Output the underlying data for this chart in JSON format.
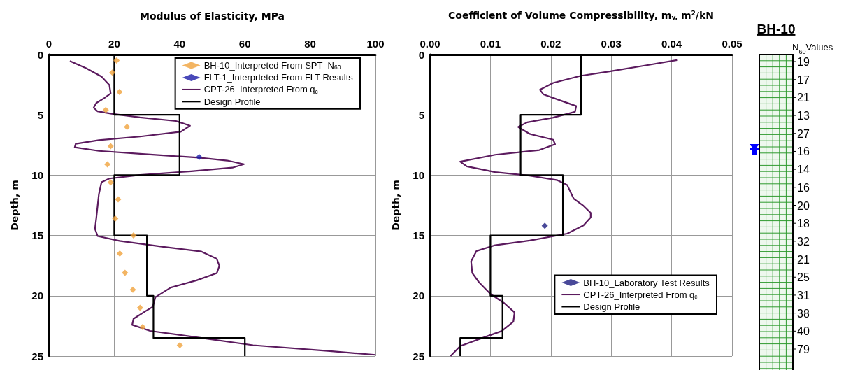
{
  "chart_data": [
    {
      "type": "scatter",
      "xlabel": "Modulus of Elasticity, MPa",
      "ylabel": "Depth, m",
      "xlim": [
        0,
        100
      ],
      "xticks": [
        0,
        20,
        40,
        60,
        80,
        100
      ],
      "ylim": [
        25,
        0
      ],
      "yticks": [
        0,
        5,
        10,
        15,
        20,
        25
      ],
      "grid": true,
      "legend": "top right",
      "series": [
        {
          "name": "BH-10_Interpreted From SPT  N$_{60}$",
          "type": "scatter",
          "marker": "diamond",
          "color": "#f0a23c",
          "x": [
            20.7,
            19.4,
            21.6,
            17.4,
            23.9,
            18.9,
            17.9,
            18.9,
            21.2,
            20.3,
            25.9,
            21.7,
            23.3,
            25.7,
            27.9,
            28.7,
            40.1
          ],
          "values": [
            0.5,
            1.5,
            3.1,
            4.6,
            6.0,
            7.6,
            9.1,
            10.6,
            12.0,
            13.6,
            15.0,
            16.5,
            18.1,
            19.5,
            21.0,
            22.6,
            24.1
          ]
        },
        {
          "name": "FLT-1_Interprteted From FLT Results",
          "type": "scatter",
          "marker": "diamond",
          "color": "#1c1ca8",
          "x": [
            46.0
          ],
          "values": [
            8.5
          ]
        },
        {
          "name": "CPT-26_Interpreted From q$_{c}$",
          "type": "line",
          "color": "#5b1a5e",
          "x": [
            6.4,
            11.4,
            16.1,
            18.5,
            18.9,
            16.9,
            14.5,
            13.7,
            14.9,
            19.2,
            27.9,
            38.9,
            43.2,
            40.4,
            27.9,
            15.3,
            8.2,
            7.9,
            15.3,
            31.0,
            46.0,
            54.6,
            59.7,
            56.2,
            43.6,
            27.9,
            18.5,
            16.1,
            15.3,
            14.9,
            14.5,
            14.1,
            14.9,
            21.6,
            35.0,
            46.7,
            51.4,
            52.2,
            51.4,
            45.2,
            37.3,
            32.6,
            31.8,
            29.4,
            25.9,
            25.5,
            31.0,
            46.7,
            62.5,
            86.0,
            100
          ],
          "values": [
            0.54,
            1.13,
            1.83,
            2.52,
            3.22,
            3.62,
            4.02,
            4.41,
            4.71,
            4.91,
            5.21,
            5.51,
            5.9,
            6.4,
            6.8,
            7.1,
            7.4,
            7.69,
            7.99,
            8.29,
            8.55,
            8.79,
            9.09,
            9.38,
            9.68,
            9.98,
            10.28,
            10.58,
            11.57,
            12.56,
            13.56,
            14.45,
            15.05,
            15.45,
            15.94,
            16.34,
            16.94,
            17.53,
            18.13,
            18.73,
            19.32,
            20.12,
            20.92,
            21.31,
            21.91,
            22.41,
            22.91,
            23.5,
            24.1,
            24.59,
            24.9
          ]
        },
        {
          "name": "Design Profile",
          "type": "line",
          "color": "#000000",
          "x": [
            20,
            20,
            40,
            40,
            20,
            20,
            30,
            30,
            32,
            32,
            60,
            60
          ],
          "values": [
            0,
            5,
            5,
            10,
            10,
            15,
            15,
            20,
            20,
            23.5,
            23.5,
            25
          ]
        }
      ]
    },
    {
      "type": "scatter",
      "xlabel": "Coefficient of Volume Compressibility, m$_{v,}$ m$^{2}$/kN",
      "ylabel": "Depth, m",
      "xlim": [
        0,
        0.05
      ],
      "xticks": [
        {
          "value": 0,
          "label": "0.00"
        },
        0.01,
        0.02,
        0.03,
        0.04,
        0.05
      ],
      "ylim": [
        25,
        0
      ],
      "yticks": [
        0,
        5,
        10,
        15,
        20,
        25
      ],
      "grid": true,
      "legend": "bottom right",
      "series": [
        {
          "name": "BH-10_Laboratory Test Results",
          "type": "scatter",
          "marker": "diamond",
          "color": "#1c1c80",
          "x": [
            0.019
          ],
          "values": [
            14.2
          ]
        },
        {
          "name": "CPT-26_Interpreted From q$_{c}$",
          "type": "line",
          "color": "#5b1a5e",
          "x": [
            0.0409,
            0.0357,
            0.0299,
            0.0249,
            0.0204,
            0.0182,
            0.0188,
            0.0215,
            0.0242,
            0.024,
            0.0204,
            0.0161,
            0.0146,
            0.0165,
            0.0204,
            0.0207,
            0.0181,
            0.0108,
            0.005,
            0.0061,
            0.0108,
            0.0165,
            0.0211,
            0.0227,
            0.0238,
            0.0254,
            0.0266,
            0.0266,
            0.0254,
            0.0227,
            0.0165,
            0.0108,
            0.0077,
            0.0068,
            0.007,
            0.0081,
            0.01,
            0.0123,
            0.014,
            0.0138,
            0.0119,
            0.0081,
            0.005,
            0.0034
          ],
          "values": [
            0.46,
            0.9,
            1.38,
            1.77,
            2.35,
            2.92,
            3.31,
            3.79,
            4.27,
            4.75,
            5.23,
            5.62,
            6.0,
            6.58,
            7.06,
            7.44,
            7.92,
            8.31,
            8.88,
            9.27,
            9.75,
            10.04,
            10.42,
            10.81,
            11.96,
            12.54,
            13.12,
            13.5,
            14.17,
            14.85,
            15.42,
            15.81,
            16.29,
            17.15,
            18.12,
            18.88,
            19.85,
            20.62,
            21.38,
            22.15,
            22.92,
            23.6,
            24.17,
            25.0
          ]
        },
        {
          "name": "Design Profile",
          "type": "line",
          "color": "#000000",
          "x": [
            0.025,
            0.025,
            0.015,
            0.015,
            0.022,
            0.022,
            0.01,
            0.01,
            0.012,
            0.012,
            0.005,
            0.005
          ],
          "values": [
            0,
            5,
            5,
            10,
            10,
            15,
            15,
            20,
            20,
            23.5,
            23.5,
            25
          ]
        }
      ]
    },
    {
      "type": "other",
      "title": "BH-10",
      "subtitle": "N$_{60}$Values",
      "annotations": [
        "19",
        "17",
        "21",
        "13",
        "27",
        "16",
        "14",
        "16",
        "20",
        "18",
        "32",
        "21",
        "25",
        "31",
        "38",
        "40",
        "79"
      ]
    }
  ]
}
